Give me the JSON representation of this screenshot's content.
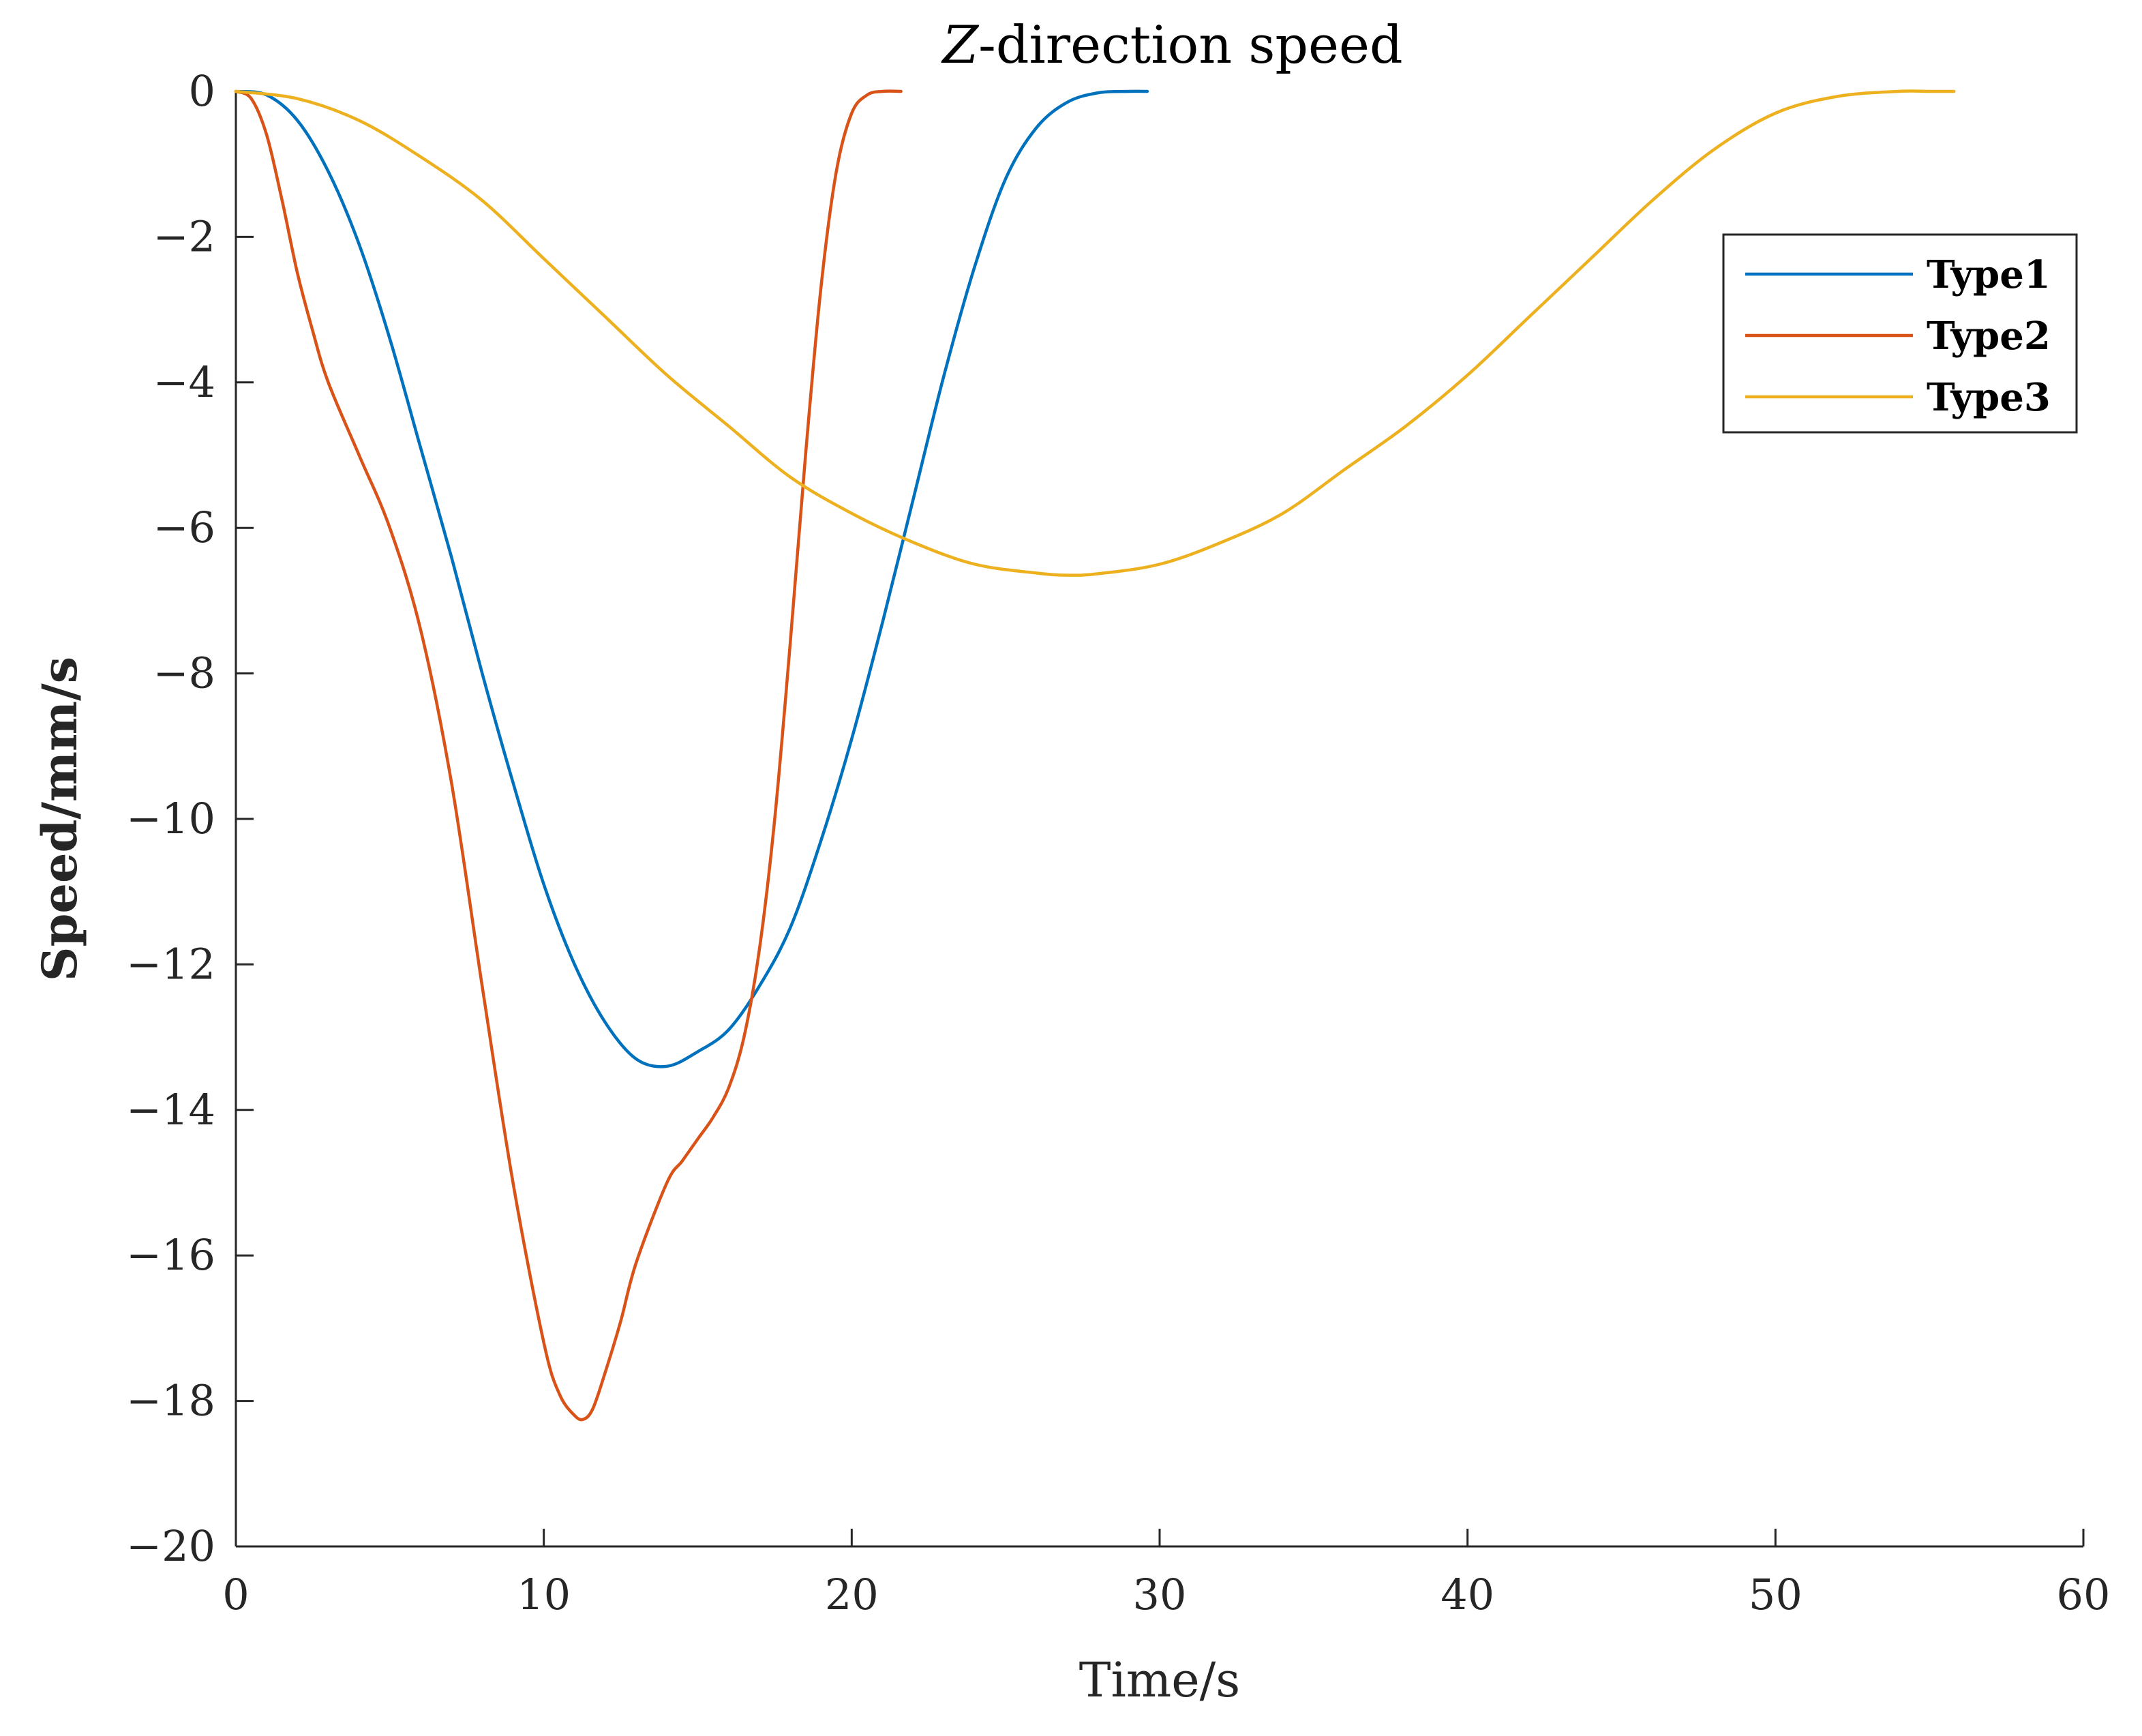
{
  "chart_data": {
    "type": "line",
    "title": "Z-direction speed",
    "title_italic_part": "Z",
    "title_rest": "-direction speed",
    "xlabel": "Time/s",
    "ylabel": "Speed/mm/s",
    "xlim": [
      0,
      60
    ],
    "ylim": [
      -20,
      0
    ],
    "xticks": [
      0,
      10,
      20,
      30,
      40,
      50,
      60
    ],
    "yticks": [
      0,
      -2,
      -4,
      -6,
      -8,
      -10,
      -12,
      -14,
      -16,
      -18,
      -20
    ],
    "xtick_labels": [
      "0",
      "10",
      "20",
      "30",
      "40",
      "50",
      "60"
    ],
    "ytick_labels": [
      "0",
      "−2",
      "−4",
      "−6",
      "−8",
      "−10",
      "−12",
      "−14",
      "−16",
      "−18",
      "−20"
    ],
    "grid": false,
    "legend_position": "top-right",
    "series": [
      {
        "name": "Type1",
        "color": "#0072BD",
        "x": [
          0,
          1,
          2,
          3,
          4,
          5,
          6,
          7,
          8,
          9,
          10,
          11,
          12,
          13,
          14,
          15,
          16,
          17,
          18,
          19,
          20,
          21,
          22,
          23,
          24,
          25,
          26,
          27,
          28,
          29,
          29.6
        ],
        "y": [
          0,
          -0.05,
          -0.4,
          -1.1,
          -2.1,
          -3.4,
          -4.9,
          -6.4,
          -8.0,
          -9.5,
          -10.9,
          -12.0,
          -12.8,
          -13.3,
          -13.4,
          -13.2,
          -12.9,
          -12.3,
          -11.5,
          -10.3,
          -8.9,
          -7.3,
          -5.6,
          -3.9,
          -2.4,
          -1.2,
          -0.5,
          -0.15,
          -0.02,
          0,
          0
        ]
      },
      {
        "name": "Type2",
        "color": "#D95319",
        "x": [
          0,
          0.5,
          1,
          1.5,
          2,
          2.5,
          3,
          4,
          5,
          6,
          7,
          8,
          9,
          10,
          10.5,
          11,
          11.3,
          11.6,
          12,
          12.5,
          13,
          14,
          14.5,
          15,
          15.5,
          16,
          16.5,
          17,
          17.5,
          18,
          18.5,
          19,
          19.5,
          20,
          20.5,
          21,
          21.6
        ],
        "y": [
          0,
          -0.1,
          -0.6,
          -1.5,
          -2.5,
          -3.3,
          -4.0,
          -5.0,
          -6.0,
          -7.4,
          -9.5,
          -12.3,
          -15.0,
          -17.2,
          -17.9,
          -18.2,
          -18.25,
          -18.1,
          -17.6,
          -16.9,
          -16.1,
          -15.0,
          -14.7,
          -14.4,
          -14.1,
          -13.7,
          -13.0,
          -11.8,
          -10.0,
          -7.6,
          -5.0,
          -2.7,
          -1.1,
          -0.3,
          -0.05,
          0,
          0
        ]
      },
      {
        "name": "Type3",
        "color": "#EDB120",
        "x": [
          0,
          2,
          4,
          6,
          8,
          10,
          12,
          14,
          16,
          18,
          20,
          22,
          24,
          26,
          27,
          28,
          30,
          32,
          34,
          36,
          38,
          40,
          42,
          44,
          46,
          48,
          50,
          52,
          54,
          55,
          55.8
        ],
        "y": [
          0,
          -0.1,
          -0.4,
          -0.9,
          -1.5,
          -2.3,
          -3.1,
          -3.9,
          -4.6,
          -5.3,
          -5.8,
          -6.2,
          -6.5,
          -6.62,
          -6.65,
          -6.63,
          -6.5,
          -6.2,
          -5.8,
          -5.2,
          -4.6,
          -3.9,
          -3.1,
          -2.3,
          -1.5,
          -0.8,
          -0.3,
          -0.07,
          0,
          0,
          0
        ]
      }
    ]
  }
}
